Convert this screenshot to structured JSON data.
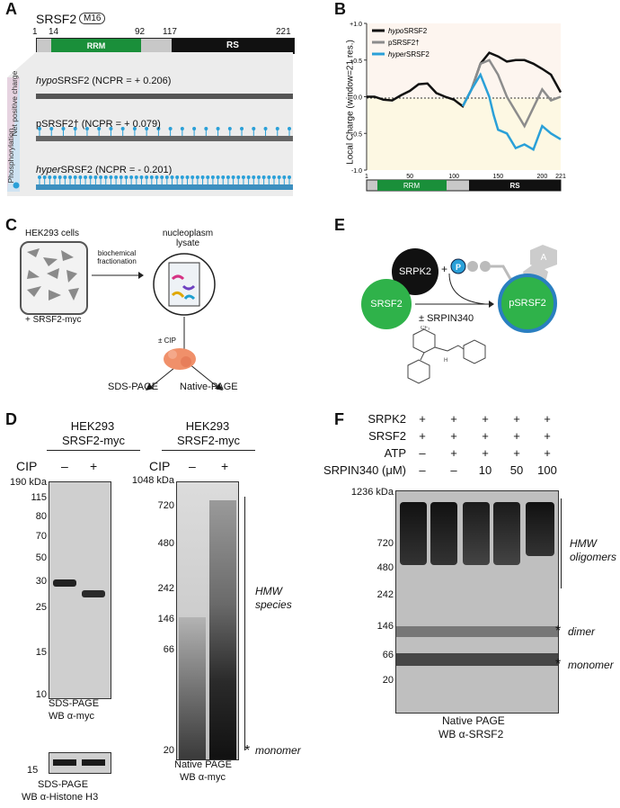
{
  "panels": {
    "A": "A",
    "B": "B",
    "C": "C",
    "D": "D",
    "E": "E",
    "F": "F"
  },
  "panel_a": {
    "protein": "SRSF2",
    "badge": "M16",
    "positions": [
      "1",
      "14",
      "92",
      "117",
      "221"
    ],
    "domain_rrm": "RRM",
    "domain_rs": "RS",
    "side_top": "Net positive charge",
    "side_bottom": "Phosphorylation",
    "hypo": {
      "name_italic": "hypo",
      "name_rest": "SRSF2 (NCPR = + 0.206)"
    },
    "p": {
      "name": "pSRSF2† (NCPR = + 0.079)"
    },
    "hyper": {
      "name_italic": "hyper",
      "name_rest": "SRSF2 (NCPR = - 0.201)"
    }
  },
  "panel_b": {
    "ylabel": "Local Charge (window=21 res.)",
    "legend": [
      {
        "italic": "hypo",
        "rest": "SRSF2",
        "color": "#111111"
      },
      {
        "italic": "",
        "rest": "pSRSF2†",
        "color": "#8c8c8c"
      },
      {
        "italic": "hyper",
        "rest": "SRSF2",
        "color": "#2aa0d8"
      }
    ],
    "yticks": [
      "+1.0",
      "+0.5",
      "0.0",
      "-0.5",
      "-1.0"
    ],
    "xticks": [
      "1",
      "50",
      "100",
      "150",
      "200",
      "221"
    ],
    "domain_rrm": "RRM",
    "domain_rs": "RS"
  },
  "chart_data": {
    "type": "line",
    "xlabel": "",
    "ylabel": "Local Charge (window=21 res.)",
    "xlim": [
      1,
      221
    ],
    "ylim": [
      -1.0,
      1.0
    ],
    "series": [
      {
        "name": "hypoSRSF2",
        "x": [
          1,
          10,
          20,
          30,
          40,
          50,
          60,
          70,
          80,
          90,
          100,
          110,
          120,
          130,
          140,
          150,
          160,
          170,
          180,
          190,
          200,
          210,
          221
        ],
        "y": [
          0.0,
          0.0,
          -0.04,
          -0.05,
          0.02,
          0.08,
          0.17,
          0.18,
          0.05,
          0.0,
          -0.04,
          -0.13,
          0.1,
          0.45,
          0.6,
          0.55,
          0.48,
          0.5,
          0.5,
          0.45,
          0.38,
          0.3,
          0.06
        ]
      },
      {
        "name": "pSRSF2†",
        "x": [
          110,
          120,
          130,
          140,
          150,
          160,
          170,
          180,
          190,
          200,
          210,
          221
        ],
        "y": [
          -0.13,
          0.1,
          0.45,
          0.5,
          0.3,
          0.0,
          -0.2,
          -0.4,
          -0.15,
          0.1,
          -0.05,
          0.0
        ]
      },
      {
        "name": "hyperSRSF2",
        "x": [
          110,
          120,
          130,
          140,
          145,
          150,
          160,
          170,
          180,
          190,
          200,
          210,
          221
        ],
        "y": [
          -0.13,
          0.1,
          0.3,
          0.0,
          -0.25,
          -0.45,
          -0.5,
          -0.7,
          -0.65,
          -0.72,
          -0.4,
          -0.5,
          -0.58
        ]
      }
    ]
  },
  "panel_c": {
    "cells": "HEK293 cells",
    "transfection": "+ SRSF2-myc",
    "fractionation": "biochemical fractionation",
    "lysate": "nucleoplasm lysate",
    "cip": "± CIP",
    "sds": "SDS-PAGE",
    "native": "Native-PAGE"
  },
  "panel_d": {
    "left": {
      "title1": "HEK293",
      "title2": "SRSF2-myc",
      "cip": "CIP",
      "lanes": [
        "–",
        "+"
      ],
      "markers": [
        "190 kDa",
        "115",
        "80",
        "70",
        "50",
        "30",
        "25",
        "15",
        "10"
      ],
      "caption1": "SDS-PAGE",
      "caption2": "WB α-myc",
      "caption3": "SDS-PAGE",
      "caption4": "WB α-Histone H3",
      "marker_h3": "15"
    },
    "right": {
      "title1": "HEK293",
      "title2": "SRSF2-myc",
      "cip": "CIP",
      "lanes": [
        "–",
        "+"
      ],
      "markers": [
        "1048 kDa",
        "720",
        "480",
        "242",
        "146",
        "66",
        "20"
      ],
      "hmw1": "HMW",
      "hmw2": "species",
      "monomer": "monomer",
      "star": "*",
      "caption1": "Native PAGE",
      "caption2": "WB α-myc"
    }
  },
  "panel_e": {
    "kinase": "SRPK2",
    "substrate": "SRSF2",
    "product": "pSRSF2",
    "atp_p": "P",
    "atp_a": "A",
    "plus": "+",
    "inhibitor": "± SRPIN340",
    "cf3": "CF₃",
    "nh": "H"
  },
  "panel_f": {
    "rows": [
      {
        "label": "SRPK2",
        "vals": [
          "+",
          "+",
          "+",
          "+",
          "+"
        ]
      },
      {
        "label": "SRSF2",
        "vals": [
          "+",
          "+",
          "+",
          "+",
          "+"
        ]
      },
      {
        "label": "ATP",
        "vals": [
          "–",
          "+",
          "+",
          "+",
          "+"
        ]
      },
      {
        "label": "SRPIN340 (μM)",
        "vals": [
          "–",
          "–",
          "10",
          "50",
          "100"
        ]
      }
    ],
    "markers": [
      "1236 kDa",
      "720",
      "480",
      "242",
      "146",
      "66",
      "20"
    ],
    "hmw1": "HMW",
    "hmw2": "oligomers",
    "dimer": "dimer",
    "monomer": "monomer",
    "star": "*",
    "caption1": "Native PAGE",
    "caption2": "WB α-SRSF2"
  }
}
